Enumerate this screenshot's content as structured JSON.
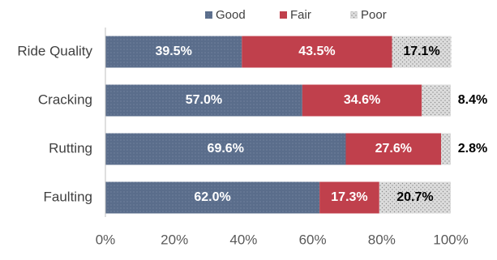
{
  "chart_data": {
    "type": "stacked-bar-horizontal",
    "categories": [
      "Ride Quality",
      "Cracking",
      "Rutting",
      "Faulting"
    ],
    "series": [
      {
        "name": "Good",
        "color": "#5a6d8b",
        "values": [
          39.5,
          57.0,
          69.6,
          62.0
        ],
        "value_labels": [
          "39.5%",
          "57.0%",
          "69.6%",
          "62.0%"
        ]
      },
      {
        "name": "Fair",
        "color": "#c0404c",
        "values": [
          43.5,
          34.6,
          27.6,
          17.3
        ],
        "value_labels": [
          "43.5%",
          "34.6%",
          "27.6%",
          "17.3%"
        ]
      },
      {
        "name": "Poor",
        "color": "#d9d9d9",
        "values": [
          17.1,
          8.4,
          2.8,
          20.7
        ],
        "value_labels": [
          "17.1%",
          "8.4%",
          "2.8%",
          "20.7%"
        ]
      }
    ],
    "xlim": [
      0,
      100
    ],
    "xticks": [
      {
        "value": 0,
        "label": "0%"
      },
      {
        "value": 20,
        "label": "20%"
      },
      {
        "value": 40,
        "label": "40%"
      },
      {
        "value": 60,
        "label": "60%"
      },
      {
        "value": 80,
        "label": "80%"
      },
      {
        "value": 100,
        "label": "100%"
      }
    ],
    "legend": "top"
  }
}
